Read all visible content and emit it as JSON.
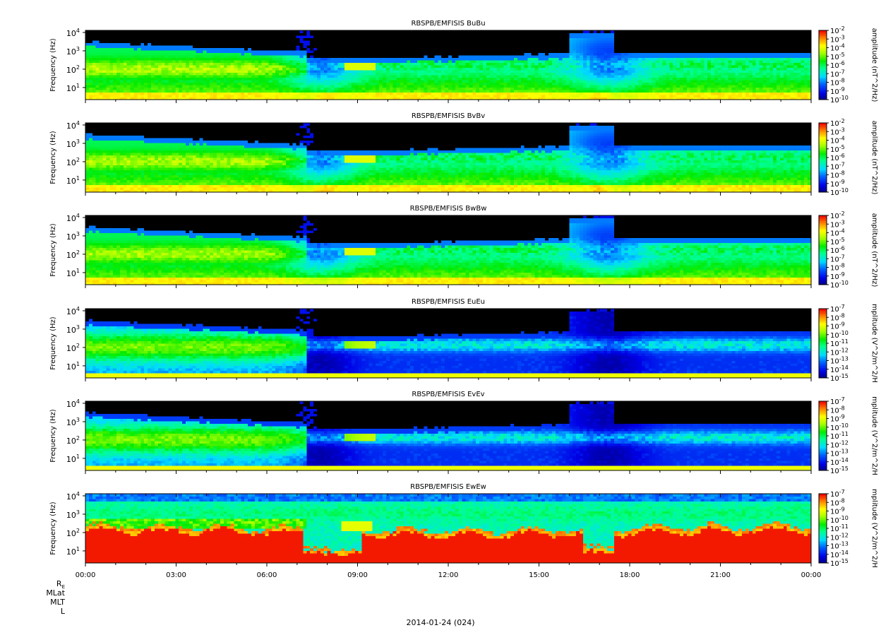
{
  "chart_data": [
    {
      "type": "heatmap",
      "title": "RBSPB/EMFISIS  BuBu",
      "ylabel": "Frequency (Hz)",
      "yscale": "log",
      "yticks": [
        [
          "1",
          "10"
        ],
        [
          "2",
          "10"
        ],
        [
          "3",
          "10"
        ],
        [
          "4",
          "10"
        ]
      ],
      "colorbar": {
        "label": "amplitude (nT^2/Hz)",
        "min_exp": -10,
        "max_exp": -2,
        "ticks": [
          "-2",
          "-3",
          "-4",
          "-5",
          "-6",
          "-7",
          "-8",
          "-9",
          "-10"
        ]
      },
      "profile": "B",
      "bandA": 0.65,
      "eventB": 0.55,
      "xspan": true
    },
    {
      "type": "heatmap",
      "title": "RBSPB/EMFISIS  BvBv",
      "ylabel": "Frequency (Hz)",
      "yscale": "log",
      "yticks": [
        [
          "1",
          "10"
        ],
        [
          "2",
          "10"
        ],
        [
          "3",
          "10"
        ],
        [
          "4",
          "10"
        ]
      ],
      "colorbar": {
        "label": "amplitude (nT^2/Hz)",
        "min_exp": -10,
        "max_exp": -2,
        "ticks": [
          "-2",
          "-3",
          "-4",
          "-5",
          "-6",
          "-7",
          "-8",
          "-9",
          "-10"
        ]
      },
      "profile": "B",
      "bandA": 0.62,
      "eventB": 0.6,
      "xspan": true
    },
    {
      "type": "heatmap",
      "title": "RBSPB/EMFISIS  BwBw",
      "ylabel": "Frequency (Hz)",
      "yscale": "log",
      "yticks": [
        [
          "1",
          "10"
        ],
        [
          "2",
          "10"
        ],
        [
          "3",
          "10"
        ],
        [
          "4",
          "10"
        ]
      ],
      "colorbar": {
        "label": "amplitude (nT^2/Hz)",
        "min_exp": -10,
        "max_exp": -2,
        "ticks": [
          "-2",
          "-3",
          "-4",
          "-5",
          "-6",
          "-7",
          "-8",
          "-9",
          "-10"
        ]
      },
      "profile": "B",
      "bandA": 0.6,
      "eventB": 0.0,
      "xspan": true
    },
    {
      "type": "heatmap",
      "title": "RBSPB/EMFISIS  EuEu",
      "ylabel": "Frequency (Hz)",
      "yscale": "log",
      "yticks": [
        [
          "1",
          "10"
        ],
        [
          "2",
          "10"
        ],
        [
          "3",
          "10"
        ],
        [
          "4",
          "10"
        ]
      ],
      "colorbar": {
        "label": "mplitude (V^2/m^2/H",
        "min_exp": -15,
        "max_exp": -7,
        "ticks": [
          "-7",
          "-8",
          "-9",
          "-10",
          "-11",
          "-12",
          "-13",
          "-14",
          "-15"
        ]
      },
      "profile": "E",
      "bandA": 0.6,
      "eventB": 0.0,
      "xspan": true
    },
    {
      "type": "heatmap",
      "title": "RBSPB/EMFISIS  EvEv",
      "ylabel": "Frequency (Hz)",
      "yscale": "log",
      "yticks": [
        [
          "1",
          "10"
        ],
        [
          "2",
          "10"
        ],
        [
          "3",
          "10"
        ],
        [
          "4",
          "10"
        ]
      ],
      "colorbar": {
        "label": "mplitude (V^2/m^2/H",
        "min_exp": -15,
        "max_exp": -7,
        "ticks": [
          "-7",
          "-8",
          "-9",
          "-10",
          "-11",
          "-12",
          "-13",
          "-14",
          "-15"
        ]
      },
      "profile": "E",
      "bandA": 0.6,
      "eventB": 0.0,
      "xspan": true
    },
    {
      "type": "heatmap",
      "title": "RBSPB/EMFISIS  EwEw",
      "ylabel": "Frequency (Hz)",
      "yscale": "log",
      "yticks": [
        [
          "1",
          "10"
        ],
        [
          "2",
          "10"
        ],
        [
          "3",
          "10"
        ],
        [
          "4",
          "10"
        ]
      ],
      "colorbar": {
        "label": "mplitude (V^2/m^2/H",
        "min_exp": -15,
        "max_exp": -7,
        "ticks": [
          "-7",
          "-8",
          "-9",
          "-10",
          "-11",
          "-12",
          "-13",
          "-14",
          "-15"
        ]
      },
      "profile": "W",
      "bandA": 0.6,
      "eventB": 0.0,
      "xspan": true
    }
  ],
  "xaxis": {
    "ticks": [
      "00:00",
      "03:00",
      "06:00",
      "09:00",
      "12:00",
      "15:00",
      "18:00",
      "21:00",
      "00:00"
    ],
    "range_hours": [
      0,
      24
    ]
  },
  "ephemeris_labels": [
    "R",
    "MLat",
    "MLT",
    "L"
  ],
  "ephemeris_sub": "E",
  "date_label": "2014-01-24 (024)"
}
